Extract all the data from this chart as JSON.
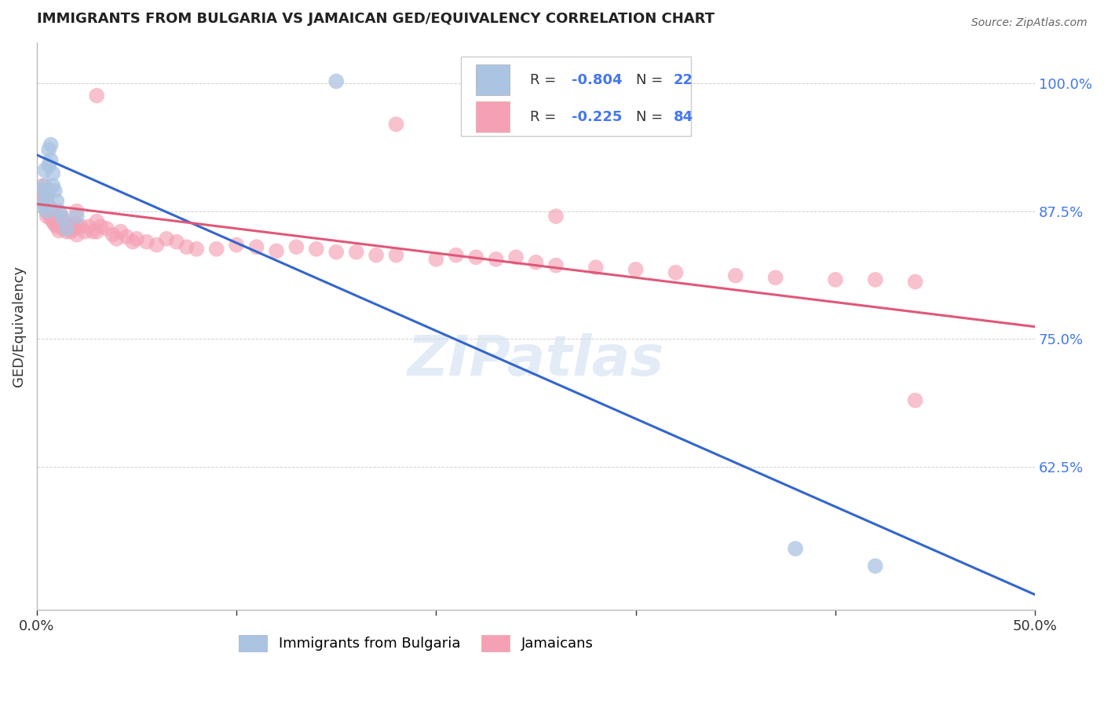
{
  "title": "IMMIGRANTS FROM BULGARIA VS JAMAICAN GED/EQUIVALENCY CORRELATION CHART",
  "source": "Source: ZipAtlas.com",
  "ylabel": "GED/Equivalency",
  "color_bulgaria": "#aac4e2",
  "color_jamaican": "#f5a0b5",
  "line_color_bulgaria": "#3366cc",
  "line_color_jamaican": "#e05878",
  "watermark": "ZIPatlas",
  "xmin": 0.0,
  "xmax": 0.5,
  "ymin": 0.485,
  "ymax": 1.04,
  "ytick_values": [
    1.0,
    0.875,
    0.75,
    0.625
  ],
  "ytick_labels": [
    "100.0%",
    "87.5%",
    "75.0%",
    "62.5%"
  ],
  "xtick_values": [
    0.0,
    0.1,
    0.2,
    0.3,
    0.4,
    0.5
  ],
  "xtick_labels": [
    "0.0%",
    "",
    "",
    "",
    "",
    "50.0%"
  ],
  "bulgaria_line_x0": 0.0,
  "bulgaria_line_y0": 0.93,
  "bulgaria_line_x1": 0.5,
  "bulgaria_line_y1": 0.5,
  "jamaican_line_x0": 0.0,
  "jamaican_line_y0": 0.882,
  "jamaican_line_x1": 0.5,
  "jamaican_line_y1": 0.762,
  "bg_color": "#ffffff",
  "legend_box_color": "#ffffff",
  "legend_box_edge": "#cccccc",
  "r_color": "#4477ee",
  "n_color": "#4477ee"
}
